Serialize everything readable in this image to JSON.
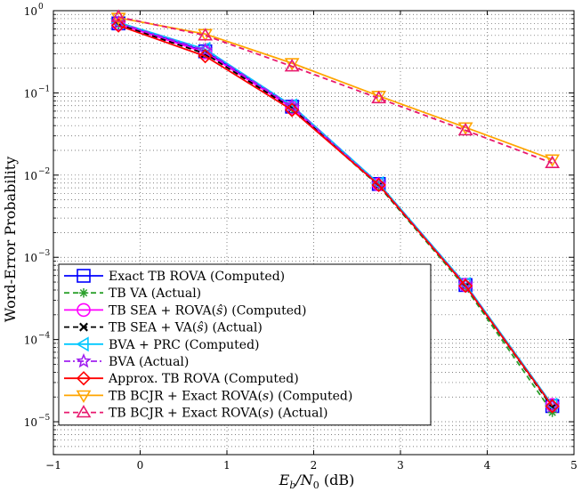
{
  "chart_data": {
    "type": "line",
    "yscale": "log",
    "xlabel_base": "E",
    "xlabel_sub1": "b",
    "xlabel_mid": "/N",
    "xlabel_sub2": "0",
    "xlabel_tail": " (dB)",
    "ylabel": "Word-Error Probability",
    "xlim": [
      -1,
      5
    ],
    "ylim_exp": [
      -5.4,
      0
    ],
    "xticks": [
      -1,
      0,
      1,
      2,
      3,
      4,
      5
    ],
    "yticks_exp": [
      0,
      -1,
      -2,
      -3,
      -4,
      -5
    ],
    "ytick_base": "10",
    "grid": true,
    "legend_position": "bottom-left",
    "series": [
      {
        "name": "Exact TB ROVA (Computed)",
        "label_parts": [
          "Exact TB ROVA (Computed)"
        ],
        "color": "#0000ff",
        "dash": "solid",
        "marker": "square",
        "x": [
          -0.25,
          0.75,
          1.75,
          2.75,
          3.75,
          4.75
        ],
        "y": [
          0.7,
          0.32,
          0.068,
          0.0078,
          0.00046,
          1.55e-05
        ]
      },
      {
        "name": "TB VA (Actual)",
        "label_parts": [
          "TB VA (Actual)"
        ],
        "color": "#2ca02c",
        "dash": "dashed",
        "marker": "asterisk",
        "x": [
          -0.25,
          0.75,
          1.75,
          2.75,
          3.75,
          4.75
        ],
        "y": [
          0.68,
          0.3,
          0.064,
          0.0074,
          0.00043,
          1.3e-05
        ]
      },
      {
        "name": "TB SEA + ROVA(ŝ) (Computed)",
        "label_parts": [
          "TB SEA + ROVA(",
          "ŝ",
          ") (Computed)"
        ],
        "color": "#ff00ff",
        "dash": "solid",
        "marker": "circle",
        "x": [
          -0.25,
          0.75,
          1.75,
          2.75,
          3.75,
          4.75
        ],
        "y": [
          0.69,
          0.31,
          0.066,
          0.0077,
          0.00046,
          1.6e-05
        ]
      },
      {
        "name": "TB SEA + VA(ŝ) (Actual)",
        "label_parts": [
          "TB SEA + VA(",
          "ŝ",
          ") (Actual)"
        ],
        "color": "#000000",
        "dash": "dashed",
        "marker": "x",
        "x": [
          -0.25,
          0.75,
          1.75,
          2.75,
          3.75,
          4.75
        ],
        "y": [
          0.68,
          0.3,
          0.065,
          0.0075,
          0.00045,
          1.5e-05
        ]
      },
      {
        "name": "BVA + PRC (Computed)",
        "label_parts": [
          "BVA + PRC (Computed)"
        ],
        "color": "#00c8ff",
        "dash": "solid",
        "marker": "triangle-left",
        "x": [
          -0.25,
          0.75,
          1.75,
          2.75,
          3.75,
          4.75
        ],
        "y": [
          0.72,
          0.34,
          0.07,
          0.0079,
          0.00047,
          1.6e-05
        ]
      },
      {
        "name": "BVA (Actual)",
        "label_parts": [
          "BVA (Actual)"
        ],
        "color": "#a020f0",
        "dash": "dashdot",
        "marker": "star",
        "x": [
          -0.25,
          0.75,
          1.75,
          2.75,
          3.75,
          4.75
        ],
        "y": [
          0.71,
          0.33,
          0.069,
          0.0077,
          0.00046,
          1.55e-05
        ]
      },
      {
        "name": "Approx. TB ROVA (Computed)",
        "label_parts": [
          "Approx. TB ROVA (Computed)"
        ],
        "color": "#ff0000",
        "dash": "solid",
        "marker": "diamond",
        "x": [
          -0.25,
          0.75,
          1.75,
          2.75,
          3.75,
          4.75
        ],
        "y": [
          0.66,
          0.28,
          0.062,
          0.0076,
          0.00045,
          1.55e-05
        ]
      },
      {
        "name": "TB BCJR + Exact ROVA(s) (Computed)",
        "label_parts": [
          "TB BCJR + Exact ROVA(",
          "s",
          ") (Computed)"
        ],
        "color": "#ffa500",
        "dash": "solid",
        "marker": "triangle-down",
        "x": [
          -0.25,
          0.75,
          1.75,
          2.75,
          3.75,
          4.75
        ],
        "y": [
          0.82,
          0.52,
          0.23,
          0.092,
          0.038,
          0.0155
        ]
      },
      {
        "name": "TB BCJR + Exact ROVA(s) (Actual)",
        "label_parts": [
          "TB BCJR + Exact ROVA(",
          "s",
          ") (Actual)"
        ],
        "color": "#e8186f",
        "dash": "dashed",
        "marker": "triangle-up",
        "x": [
          -0.25,
          0.75,
          1.75,
          2.75,
          3.75,
          4.75
        ],
        "y": [
          0.84,
          0.5,
          0.21,
          0.086,
          0.035,
          0.014
        ]
      }
    ]
  }
}
